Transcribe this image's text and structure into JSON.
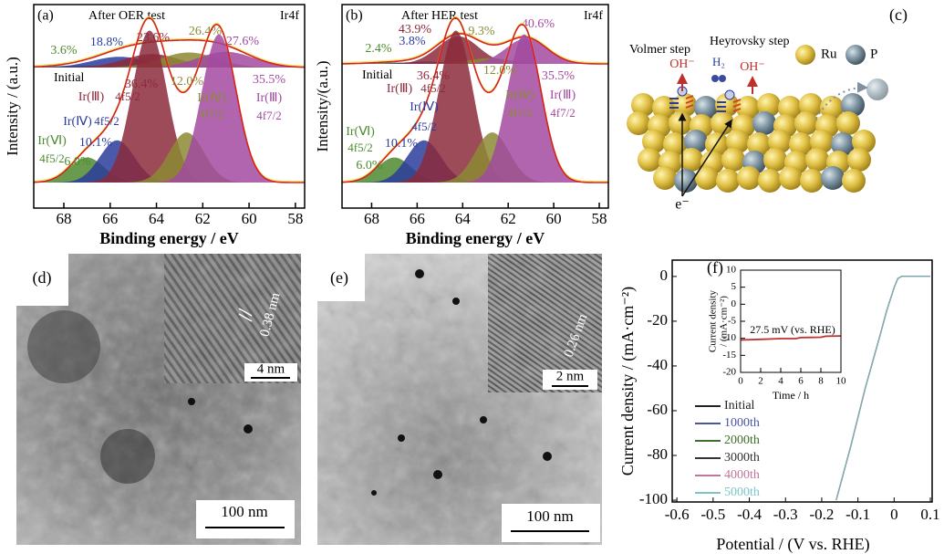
{
  "chart_data": [
    {
      "type": "xps",
      "panel": "(a)",
      "title": "Ir4f",
      "xlabel": "Binding energy / eV",
      "ylabel": "Intensity / (a.u.)",
      "xlim": [
        69.3,
        57.6
      ],
      "xticks": [
        68,
        66,
        64,
        62,
        60,
        58
      ],
      "spectra": [
        {
          "name": "After OER test",
          "values": [
            3.6,
            18.8,
            23.6,
            26.4,
            27.6
          ],
          "value_labels": [
            "3.6%",
            "18.8%",
            "23.6%",
            "26.4%",
            "27.6%"
          ],
          "centers": [
            67.3,
            65.6,
            64.2,
            62.6,
            61.0
          ],
          "colors": [
            "#4d8a2e",
            "#2b3c9c",
            "#8c2a3c",
            "#8c8a34",
            "#a24aa0"
          ]
        },
        {
          "name": "Initial",
          "values": [
            6.0,
            10.1,
            36.4,
            12.0,
            35.5
          ],
          "value_labels": [
            "6.0%",
            "10.1%",
            "36.4%",
            "12.0%",
            "35.5%"
          ],
          "centers": [
            67.0,
            65.7,
            64.3,
            62.7,
            61.3
          ],
          "colors": [
            "#4d8a2e",
            "#2b3c9c",
            "#8c2a3c",
            "#8c8a34",
            "#a24aa0"
          ],
          "species": [
            "Ir(Ⅵ)",
            "Ir(Ⅳ)",
            "Ir(Ⅲ)",
            "Ir(Ⅳ)",
            "Ir(Ⅲ)"
          ],
          "orbitals": [
            "4f5/2",
            "4f5/2",
            "4f5/2",
            "4f7/2",
            "4f7/2"
          ]
        }
      ]
    },
    {
      "type": "xps",
      "panel": "(b)",
      "title": "Ir4f",
      "xlabel": "Binding energy / eV",
      "ylabel": "Intensity/(a.u.)",
      "xlim": [
        69.3,
        57.6
      ],
      "xticks": [
        68,
        66,
        64,
        62,
        60,
        58
      ],
      "spectra": [
        {
          "name": "After HER test",
          "values": [
            2.4,
            3.8,
            43.9,
            9.3,
            40.6
          ],
          "value_labels": [
            "2.4%",
            "3.8%",
            "43.9%",
            "9.3%",
            "40.6%"
          ],
          "centers": [
            67.2,
            65.6,
            64.2,
            62.8,
            61.2
          ],
          "colors": [
            "#4d8a2e",
            "#2b3c9c",
            "#8c2a3c",
            "#8c8a34",
            "#a24aa0"
          ]
        },
        {
          "name": "Initial",
          "values": [
            6.0,
            10.1,
            36.4,
            12.0,
            35.5
          ],
          "value_labels": [
            "6.0%",
            "10.1%",
            "36.4%",
            "12.0%",
            "35.5%"
          ],
          "centers": [
            67.0,
            65.7,
            64.3,
            62.7,
            61.3
          ],
          "colors": [
            "#4d8a2e",
            "#2b3c9c",
            "#8c2a3c",
            "#8c8a34",
            "#a24aa0"
          ],
          "species": [
            "Ir(Ⅵ)",
            "Ir(Ⅳ)",
            "Ir(Ⅲ)",
            "Ir(Ⅳ)",
            "Ir(Ⅲ)"
          ],
          "orbitals": [
            "4f5/2",
            "4f5/2",
            "4f5/2",
            "4f7/2",
            "4f7/2"
          ]
        }
      ]
    },
    {
      "type": "line",
      "panel": "(f)",
      "xlabel": "Potential / (V vs. RHE)",
      "ylabel": "Current density / (mA·cm⁻²)",
      "xlim": [
        -0.613,
        0.105
      ],
      "xticks": [
        -0.6,
        -0.5,
        -0.4,
        -0.3,
        -0.2,
        -0.1,
        0,
        0.1
      ],
      "ylim": [
        -100.8,
        7.3
      ],
      "yticks": [
        0,
        -20,
        -40,
        -60,
        -80,
        -100
      ],
      "x": [
        -0.16,
        -0.12,
        -0.08,
        -0.04,
        -0.02,
        0,
        0.01,
        0.02,
        0.1
      ],
      "series": [
        {
          "name": "Initial",
          "color": "#222222",
          "values": [
            -100,
            -76,
            -50,
            -27,
            -15,
            -5,
            -1,
            0,
            0
          ]
        },
        {
          "name": "1000th",
          "color": "#4a55a8",
          "values": [
            -100,
            -76,
            -50,
            -27,
            -15,
            -5,
            -1,
            0,
            0
          ]
        },
        {
          "name": "2000th",
          "color": "#3d6e2a",
          "values": [
            -100,
            -76,
            -50,
            -27,
            -15,
            -5,
            -1,
            0,
            0
          ]
        },
        {
          "name": "3000th",
          "color": "#333333",
          "values": [
            -100,
            -76,
            -50,
            -27,
            -15,
            -5,
            -1,
            0,
            0
          ]
        },
        {
          "name": "4000th",
          "color": "#c2769a",
          "values": [
            -100,
            -76,
            -50,
            -27,
            -15,
            -5,
            -1,
            0,
            0
          ]
        },
        {
          "name": "5000th",
          "color": "#7cc6c8",
          "values": [
            -100,
            -76,
            -50,
            -27,
            -15,
            -5,
            -1,
            0,
            0
          ]
        }
      ]
    },
    {
      "type": "line",
      "xlabel": "Time / h",
      "ylabel": [
        "Current density",
        "/ (mA·cm⁻²)"
      ],
      "annotation": "27.5 mV (vs. RHE)",
      "xlim": [
        0,
        10
      ],
      "xticks": [
        0,
        2,
        4,
        6,
        8,
        10
      ],
      "ylim": [
        -20,
        10
      ],
      "yticks": [
        10,
        5,
        0,
        -5,
        -10,
        -15,
        -20
      ],
      "x": [
        0,
        2,
        4,
        5.5,
        6,
        8,
        8.5,
        10
      ],
      "series": [
        {
          "color": "#c03030",
          "values": [
            -10.5,
            -10.3,
            -10.1,
            -10.1,
            -9.8,
            -9.7,
            -9.4,
            -9.3
          ]
        }
      ]
    }
  ],
  "schematic": {
    "label": "(c)",
    "steps": [
      "Volmer step",
      "Heyrovsky step"
    ],
    "species": [
      "OH⁻",
      "H₂",
      "OH⁻"
    ],
    "legend": [
      "Ru",
      "P"
    ],
    "electron": "e⁻"
  },
  "micrographs": [
    {
      "label": "(d)",
      "lattice": "0.38 nm",
      "inset_scale": "4 nm",
      "scale": "100 nm"
    },
    {
      "label": "(e)",
      "lattice": "0.26 nm",
      "inset_scale": "2 nm",
      "scale": "100 nm"
    }
  ]
}
